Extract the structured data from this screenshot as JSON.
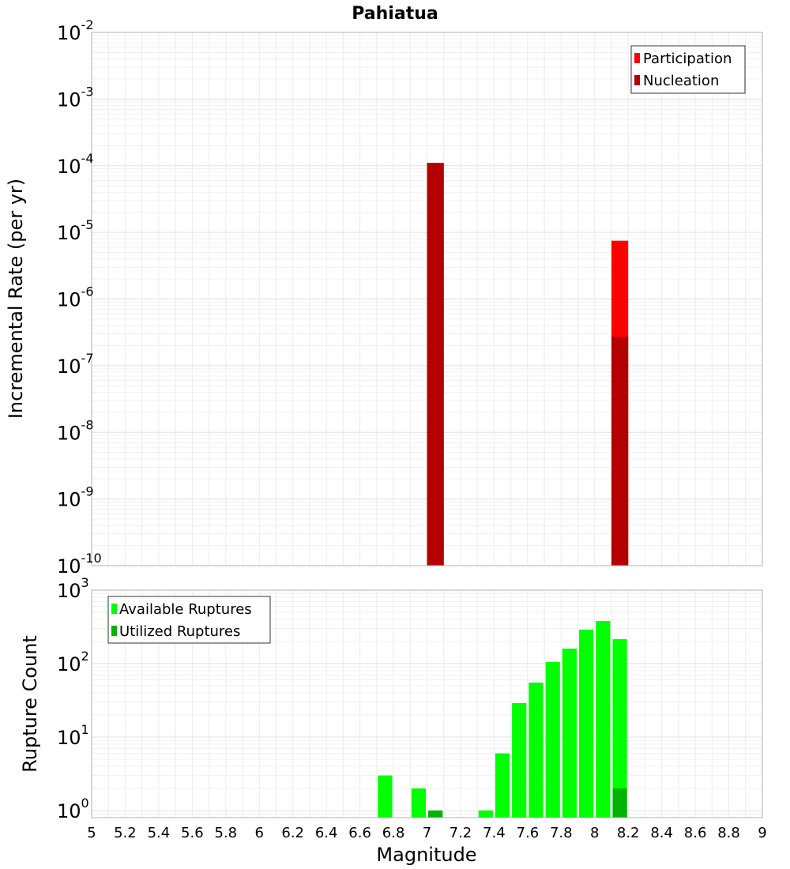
{
  "chart_data": [
    {
      "type": "bar",
      "title": "Pahiatua",
      "xlabel": "",
      "ylabel": "Incremental Rate (per yr)",
      "yscale": "log",
      "xlim": [
        5,
        9
      ],
      "ylim": [
        1e-10,
        0.01
      ],
      "bar_width": 0.1,
      "legend": "top-right",
      "grid": true,
      "y_ticks": [
        {
          "base": "10",
          "exp": "-10",
          "value": 1e-10
        },
        {
          "base": "10",
          "exp": "-9",
          "value": 1e-09
        },
        {
          "base": "10",
          "exp": "-8",
          "value": 1e-08
        },
        {
          "base": "10",
          "exp": "-7",
          "value": 1e-07
        },
        {
          "base": "10",
          "exp": "-6",
          "value": 1e-06
        },
        {
          "base": "10",
          "exp": "-5",
          "value": 1e-05
        },
        {
          "base": "10",
          "exp": "-4",
          "value": 0.0001
        },
        {
          "base": "10",
          "exp": "-3",
          "value": 0.001
        },
        {
          "base": "10",
          "exp": "-2",
          "value": 0.01
        }
      ],
      "series": [
        {
          "name": "Participation",
          "color": "#ff0000",
          "x": [
            7.05,
            8.15
          ],
          "values": [
            0.00011,
            7.5e-06
          ]
        },
        {
          "name": "Nucleation",
          "color": "#b30000",
          "x": [
            7.05,
            8.15
          ],
          "values": [
            0.00011,
            2.7e-07
          ]
        }
      ]
    },
    {
      "type": "bar",
      "title": "",
      "xlabel": "Magnitude",
      "ylabel": "Rupture Count",
      "yscale": "log",
      "xlim": [
        5,
        9
      ],
      "ylim": [
        0.8,
        1000
      ],
      "bar_width": 0.1,
      "legend": "top-left",
      "grid": true,
      "x_ticks": [
        "5",
        "5.2",
        "5.4",
        "5.6",
        "5.8",
        "6",
        "6.2",
        "6.4",
        "6.6",
        "6.8",
        "7",
        "7.2",
        "7.4",
        "7.6",
        "7.8",
        "8",
        "8.2",
        "8.4",
        "8.6",
        "8.8",
        "9"
      ],
      "y_ticks": [
        {
          "base": "10",
          "exp": "0",
          "value": 1
        },
        {
          "base": "10",
          "exp": "1",
          "value": 10
        },
        {
          "base": "10",
          "exp": "2",
          "value": 100
        },
        {
          "base": "10",
          "exp": "3",
          "value": 1000
        }
      ],
      "series": [
        {
          "name": "Available Ruptures",
          "color": "#00ff00",
          "x": [
            6.75,
            6.95,
            7.05,
            7.35,
            7.45,
            7.55,
            7.65,
            7.75,
            7.85,
            7.95,
            8.05,
            8.15
          ],
          "values": [
            3,
            2,
            1,
            1,
            6,
            29,
            55,
            105,
            160,
            290,
            380,
            215
          ]
        },
        {
          "name": "Utilized Ruptures",
          "color": "#00b300",
          "x": [
            7.05,
            8.15
          ],
          "values": [
            1,
            2
          ]
        }
      ]
    }
  ]
}
